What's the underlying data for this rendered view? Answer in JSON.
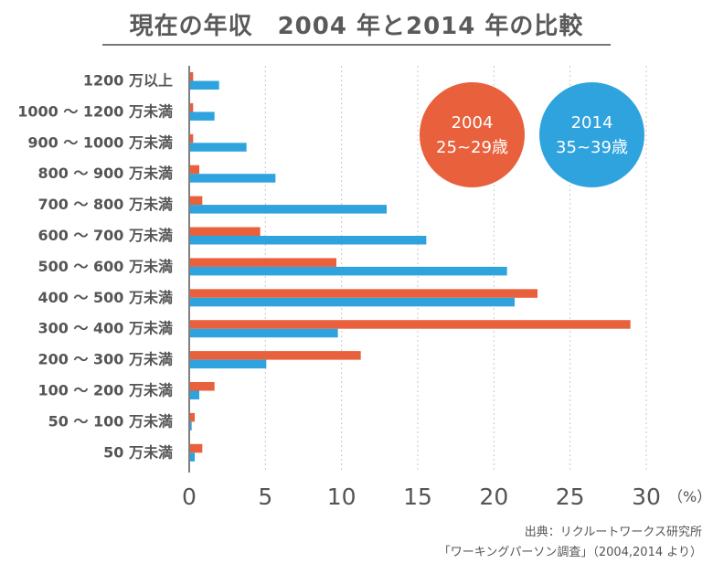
{
  "title": "現在の年収　2004 年と2014 年の比較",
  "legend": {
    "badge_2004": {
      "year": "2004",
      "age": "25~29歳"
    },
    "badge_2014": {
      "year": "2014",
      "age": "35~39歳"
    }
  },
  "source": {
    "line1": "出典：リクルートワークス研究所",
    "line2": "「ワーキングパーソン調査」（2004,2014 より）"
  },
  "colors": {
    "series_2004": "#e8603c",
    "series_2014": "#2ea3de",
    "grid": "#c8c8c8",
    "axis": "#555555"
  },
  "chart_data": {
    "type": "bar",
    "orientation": "horizontal",
    "title": "現在の年収　2004 年と2014 年の比較",
    "categories": [
      "1200 万以上",
      "1000 ～ 1200 万未満",
      "900 ～ 1000 万未満",
      "800 ～ 900 万未満",
      "700 ～ 800 万未満",
      "600 ～ 700 万未満",
      "500 ～ 600 万未満",
      "400 ～ 500 万未満",
      "300 ～ 400 万未満",
      "200 ～ 300 万未満",
      "100 ～ 200 万未満",
      "50 ～ 100 万未満",
      "50 万未満"
    ],
    "series": [
      {
        "name": "2004 25~29歳",
        "values": [
          0.2,
          0.2,
          0.2,
          0.6,
          0.8,
          4.6,
          9.6,
          22.8,
          28.9,
          11.2,
          1.6,
          0.3,
          0.8
        ]
      },
      {
        "name": "2014 35~39歳",
        "values": [
          1.9,
          1.6,
          3.7,
          5.6,
          12.9,
          15.5,
          20.8,
          21.3,
          9.7,
          5.0,
          0.6,
          0.1,
          0.3
        ]
      }
    ],
    "xlim": [
      0,
      30
    ],
    "xticks": [
      "0",
      "5",
      "10",
      "15",
      "20",
      "25",
      "30"
    ],
    "xunit": "（%）",
    "grid": true
  }
}
